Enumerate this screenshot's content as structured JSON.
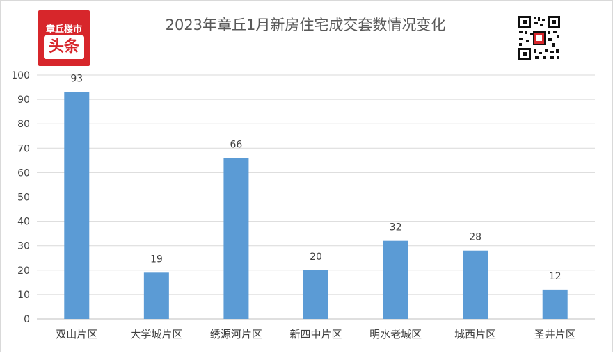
{
  "logo": {
    "top_text": "章丘楼市",
    "bottom_text": "头条"
  },
  "qr_code": {
    "icon": "qr-code-icon"
  },
  "chart_data": {
    "type": "bar",
    "title": "2023年章丘1月新房住宅成交套数情况变化",
    "categories": [
      "双山片区",
      "大学城片区",
      "绣源河片区",
      "新四中片区",
      "明水老城区",
      "城西片区",
      "圣井片区"
    ],
    "values": [
      93,
      19,
      66,
      20,
      32,
      28,
      12
    ],
    "ylim": [
      0,
      100
    ],
    "yticks": [
      "0",
      "10",
      "20",
      "30",
      "40",
      "50",
      "60",
      "70",
      "80",
      "90",
      "100"
    ],
    "data_labels": [
      "93",
      "19",
      "66",
      "20",
      "32",
      "28",
      "12"
    ],
    "grid": true,
    "legend": "none",
    "bar_color": "#5b9bd5",
    "grid_color": "#d9d9d9"
  }
}
